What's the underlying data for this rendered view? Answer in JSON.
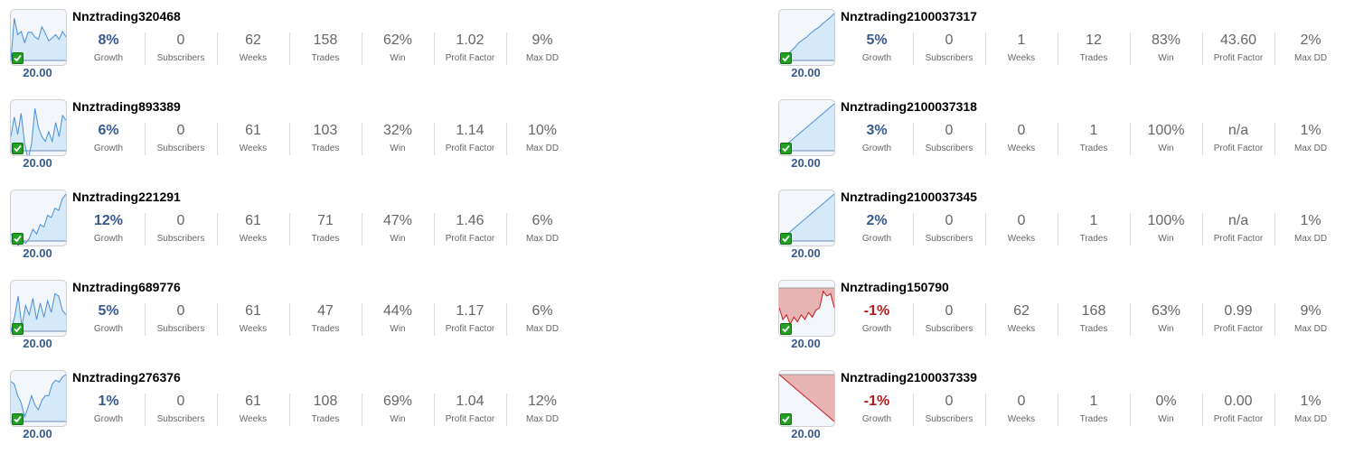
{
  "stat_labels": {
    "growth": "Growth",
    "subscribers": "Subscribers",
    "weeks": "Weeks",
    "trades": "Trades",
    "win": "Win",
    "profit_factor": "Profit Factor",
    "max_dd": "Max DD"
  },
  "colors": {
    "positive_line": "#4a8fd4",
    "positive_fill": "#d6e9f8",
    "negative_line": "#c41a1a",
    "negative_fill": "#e8b3b3",
    "growth_positive": "#3a5a8c",
    "growth_negative": "#b01c1c"
  },
  "verified_icon": "checkmark-icon",
  "signals": [
    {
      "name": "Nnztrading320468",
      "price": "20.00",
      "growth": "8%",
      "growth_negative": false,
      "subscribers": "0",
      "weeks": "62",
      "trades": "158",
      "win": "62%",
      "profit_factor": "1.02",
      "max_dd": "9%",
      "curve": [
        0.0,
        0.9,
        0.55,
        0.62,
        0.38,
        0.6,
        0.6,
        0.5,
        0.45,
        0.72,
        0.58,
        0.42,
        0.48,
        0.55,
        0.45,
        0.62,
        0.5
      ]
    },
    {
      "name": "Nnztrading893389",
      "price": "20.00",
      "growth": "6%",
      "growth_negative": false,
      "subscribers": "0",
      "weeks": "61",
      "trades": "103",
      "win": "32%",
      "profit_factor": "1.14",
      "max_dd": "10%",
      "curve": [
        0.3,
        0.72,
        0.35,
        0.8,
        0.15,
        -0.2,
        0.15,
        0.9,
        0.5,
        0.3,
        0.2,
        0.4,
        0.2,
        0.6,
        0.3,
        0.75,
        0.65
      ]
    },
    {
      "name": "Nnztrading221291",
      "price": "20.00",
      "growth": "12%",
      "growth_negative": false,
      "subscribers": "0",
      "weeks": "61",
      "trades": "71",
      "win": "47%",
      "profit_factor": "1.46",
      "max_dd": "6%",
      "curve": [
        0.15,
        0.05,
        -0.1,
        0.02,
        -0.05,
        0.05,
        0.25,
        0.15,
        0.35,
        0.3,
        0.55,
        0.5,
        0.7,
        0.65,
        0.9,
        1.0
      ]
    },
    {
      "name": "Nnztrading689776",
      "price": "20.00",
      "growth": "5%",
      "growth_negative": false,
      "subscribers": "0",
      "weeks": "61",
      "trades": "47",
      "win": "44%",
      "profit_factor": "1.17",
      "max_dd": "6%",
      "curve": [
        0.0,
        0.3,
        0.75,
        0.1,
        0.55,
        0.35,
        0.7,
        0.25,
        0.6,
        0.3,
        0.65,
        0.4,
        0.8,
        0.75,
        0.45,
        0.35
      ]
    },
    {
      "name": "Nnztrading276376",
      "price": "20.00",
      "growth": "1%",
      "growth_negative": false,
      "subscribers": "0",
      "weeks": "61",
      "trades": "108",
      "win": "69%",
      "profit_factor": "1.04",
      "max_dd": "12%",
      "curve": [
        0.85,
        0.8,
        0.55,
        0.4,
        0.1,
        0.3,
        0.55,
        0.35,
        0.25,
        0.45,
        0.55,
        0.55,
        0.8,
        0.88,
        0.84,
        0.95,
        1.0
      ]
    },
    {
      "name": "Nnztrading2100037317",
      "price": "20.00",
      "growth": "5%",
      "growth_negative": false,
      "subscribers": "0",
      "weeks": "1",
      "trades": "12",
      "win": "83%",
      "profit_factor": "43.60",
      "max_dd": "2%",
      "curve": [
        0.0,
        0.05,
        0.12,
        0.2,
        0.28,
        0.38,
        0.44,
        0.5,
        0.58,
        0.65,
        0.7,
        0.78,
        0.85,
        0.92,
        1.0
      ]
    },
    {
      "name": "Nnztrading2100037318",
      "price": "20.00",
      "growth": "3%",
      "growth_negative": false,
      "subscribers": "0",
      "weeks": "0",
      "trades": "1",
      "win": "100%",
      "profit_factor": "n/a",
      "max_dd": "1%",
      "curve": [
        0.0,
        1.0
      ]
    },
    {
      "name": "Nnztrading2100037345",
      "price": "20.00",
      "growth": "2%",
      "growth_negative": false,
      "subscribers": "0",
      "weeks": "0",
      "trades": "1",
      "win": "100%",
      "profit_factor": "n/a",
      "max_dd": "1%",
      "curve": [
        0.0,
        1.0
      ]
    },
    {
      "name": "Nnztrading150790",
      "price": "20.00",
      "growth": "-1%",
      "growth_negative": true,
      "subscribers": "0",
      "weeks": "62",
      "trades": "168",
      "win": "63%",
      "profit_factor": "0.99",
      "max_dd": "9%",
      "curve": [
        0.5,
        0.25,
        0.35,
        0.15,
        0.3,
        0.2,
        0.35,
        0.25,
        0.4,
        0.3,
        0.45,
        0.5,
        0.85,
        0.75,
        0.8,
        0.5
      ]
    },
    {
      "name": "Nnztrading2100037339",
      "price": "20.00",
      "growth": "-1%",
      "growth_negative": true,
      "subscribers": "0",
      "weeks": "0",
      "trades": "1",
      "win": "0%",
      "profit_factor": "0.00",
      "max_dd": "1%",
      "curve": [
        1.0,
        0.0
      ]
    }
  ]
}
